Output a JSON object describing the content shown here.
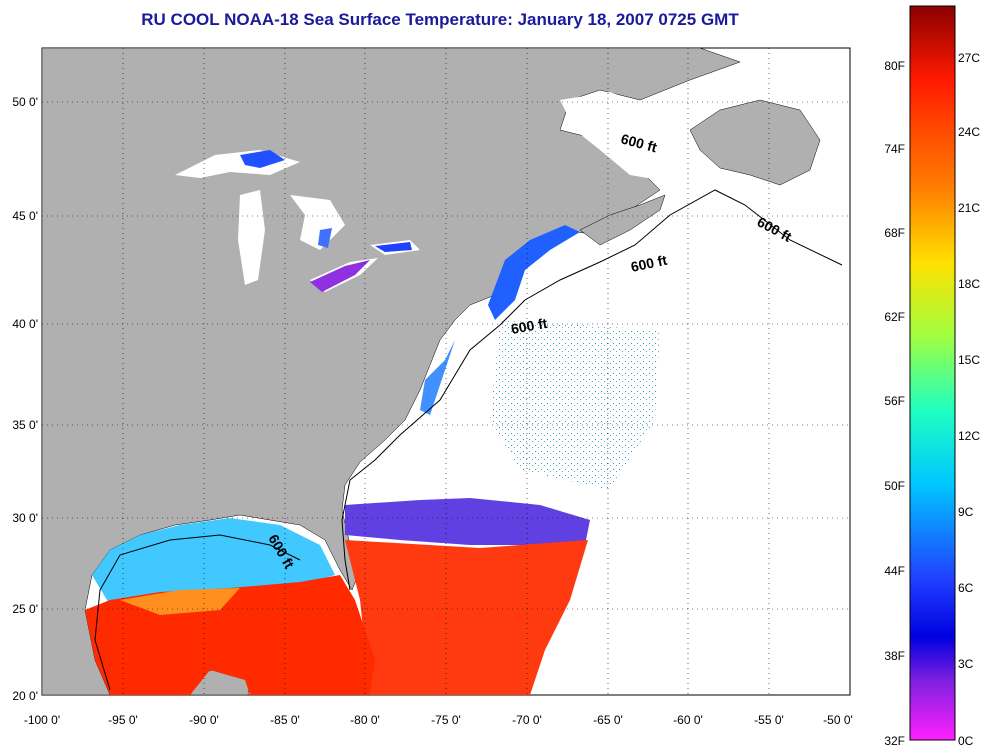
{
  "title": "RU COOL  NOAA-18  Sea Surface Temperature:  January 18, 2007 0725 GMT",
  "map": {
    "lon_range": [
      -100,
      -50
    ],
    "lat_range": [
      20,
      52
    ],
    "lon_ticks": [
      "-100 0'",
      "-95 0'",
      "-90 0'",
      "-85 0'",
      "-80 0'",
      "-75 0'",
      "-70 0'",
      "-65 0'",
      "-60 0'",
      "-55 0'",
      "-50 0'"
    ],
    "lat_ticks": [
      "20 0'",
      "25 0'",
      "30 0'",
      "35 0'",
      "40 0'",
      "45 0'",
      "50 0'"
    ],
    "grid": true,
    "land_color": "#b0b0b0",
    "ocean_nodata_color": "#ffffff",
    "contour_labels": [
      "600 ft",
      "600 ft",
      "600 ft",
      "600 ft",
      "600 ft"
    ]
  },
  "colorbar": {
    "fahrenheit_labels": [
      "80F",
      "74F",
      "68F",
      "62F",
      "56F",
      "50F",
      "44F",
      "38F",
      "32F"
    ],
    "celsius_labels": [
      "27C",
      "24C",
      "21C",
      "18C",
      "15C",
      "12C",
      "9C",
      "6C",
      "3C",
      "0C"
    ],
    "colors_top_to_bottom": [
      "#8b0000",
      "#ff2000",
      "#ff8000",
      "#ffe000",
      "#a0ff40",
      "#20ffc0",
      "#00c0ff",
      "#2040ff",
      "#0000e0",
      "#8020e0",
      "#ff20ff"
    ]
  }
}
